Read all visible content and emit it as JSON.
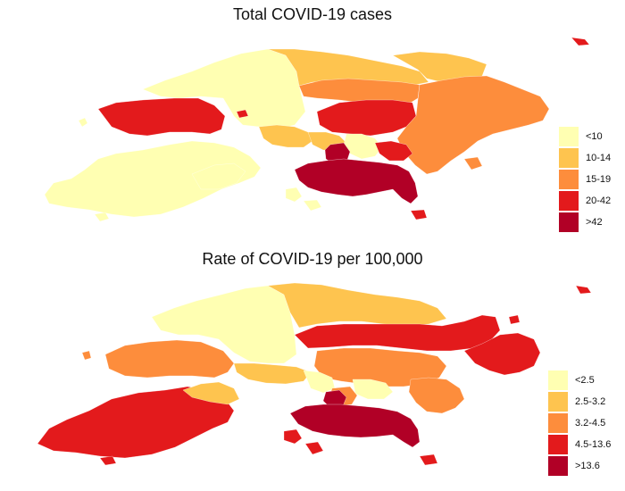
{
  "maps": [
    {
      "title": "Total COVID-19 cases",
      "legend": [
        {
          "label": "<10",
          "color": "#FFFFB2"
        },
        {
          "label": "10-14",
          "color": "#FEC44F"
        },
        {
          "label": "15-19",
          "color": "#FD8D3C"
        },
        {
          "label": "20-42",
          "color": "#E31A1C"
        },
        {
          "label": ">42",
          "color": "#B10026"
        }
      ]
    },
    {
      "title": "Rate of COVID-19 per 100,000",
      "legend": [
        {
          "label": "<2.5",
          "color": "#FFFFB2"
        },
        {
          "label": "2.5-3.2",
          "color": "#FEC44F"
        },
        {
          "label": "3.2-4.5",
          "color": "#FD8D3C"
        },
        {
          "label": "4.5-13.6",
          "color": "#E31A1C"
        },
        {
          "label": ">13.6",
          "color": "#B10026"
        }
      ]
    }
  ]
}
